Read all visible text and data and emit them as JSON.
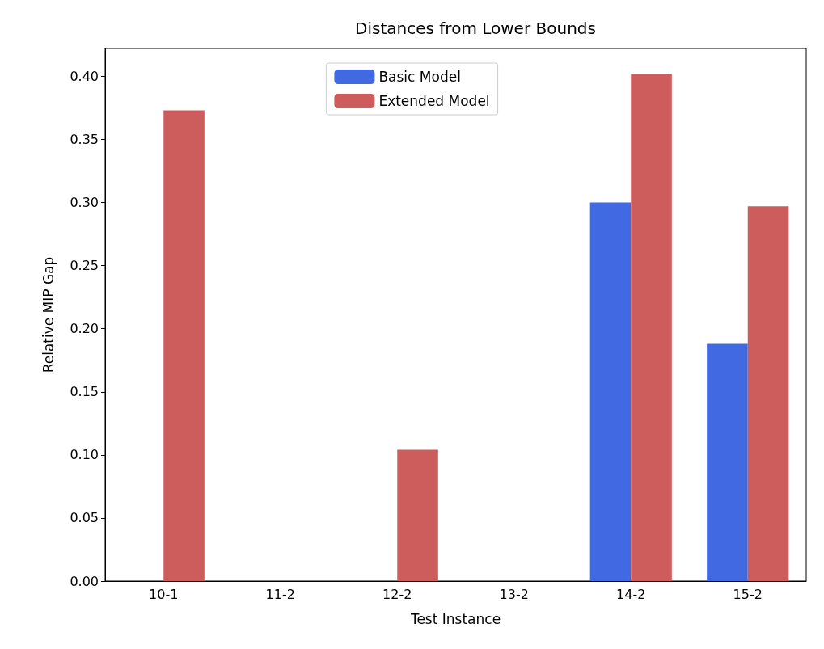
{
  "chart_data": {
    "type": "bar",
    "title": "Distances from Lower Bounds",
    "xlabel": "Test Instance",
    "ylabel": "Relative MIP Gap",
    "categories": [
      "10-1",
      "11-2",
      "12-2",
      "13-2",
      "14-2",
      "15-2"
    ],
    "series": [
      {
        "name": "Basic Model",
        "color": "#4169e1",
        "values": [
          0,
          0,
          0,
          0,
          0.3,
          0.188
        ]
      },
      {
        "name": "Extended Model",
        "color": "#cd5c5c",
        "values": [
          0.373,
          0,
          0.104,
          0,
          0.402,
          0.297
        ]
      }
    ],
    "ylim": [
      0,
      0.422
    ],
    "yticks": [
      {
        "value": 0,
        "label": "0.00"
      },
      {
        "value": 0.05,
        "label": "0.05"
      },
      {
        "value": 0.1,
        "label": "0.10"
      },
      {
        "value": 0.15,
        "label": "0.15"
      },
      {
        "value": 0.2,
        "label": "0.20"
      },
      {
        "value": 0.25,
        "label": "0.25"
      },
      {
        "value": 0.3,
        "label": "0.30"
      },
      {
        "value": 0.35,
        "label": "0.35"
      },
      {
        "value": 0.4,
        "label": "0.40"
      }
    ],
    "grid": false,
    "legend": "top"
  }
}
